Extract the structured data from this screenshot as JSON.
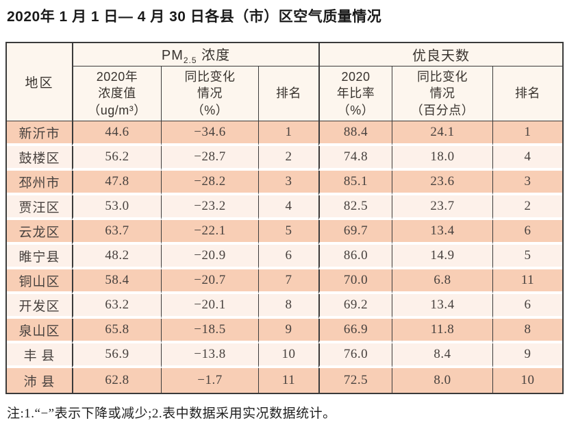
{
  "title": "2020年 1 月 1 日— 4 月 30 日各县（市）区空气质量情况",
  "table": {
    "region_header": "地区",
    "group_pm25": {
      "prefix": "PM",
      "sub": "2.5",
      "suffix": " 浓度"
    },
    "group_good_days": "优良天数",
    "subheaders": {
      "pm_value": "2020年\n浓度值\n（ug/m³）",
      "pm_change": "同比变化\n情况\n（%）",
      "pm_rank": "排名",
      "good_ratio": "2020\n年比率\n（%）",
      "good_change": "同比变化\n情况\n（百分点）",
      "good_rank": "排名"
    },
    "rows": [
      [
        "新沂市",
        "44.6",
        "−34.6",
        "1",
        "88.4",
        "24.1",
        "1"
      ],
      [
        "鼓楼区",
        "56.2",
        "−28.7",
        "2",
        "74.8",
        "18.0",
        "4"
      ],
      [
        "邳州市",
        "47.8",
        "−28.2",
        "3",
        "85.1",
        "23.6",
        "3"
      ],
      [
        "贾汪区",
        "53.0",
        "−23.2",
        "4",
        "82.5",
        "23.7",
        "2"
      ],
      [
        "云龙区",
        "63.7",
        "−22.1",
        "5",
        "69.7",
        "13.4",
        "6"
      ],
      [
        "睢宁县",
        "48.2",
        "−20.9",
        "6",
        "86.0",
        "14.9",
        "5"
      ],
      [
        "铜山区",
        "58.4",
        "−20.7",
        "7",
        "70.0",
        "6.8",
        "11"
      ],
      [
        "开发区",
        "63.2",
        "−20.1",
        "8",
        "69.2",
        "13.4",
        "6"
      ],
      [
        "泉山区",
        "65.8",
        "−18.5",
        "9",
        "66.9",
        "11.8",
        "8"
      ],
      [
        "丰 县",
        "56.9",
        "−13.8",
        "10",
        "76.0",
        "8.4",
        "9"
      ],
      [
        "沛 县",
        "62.8",
        "−1.7",
        "11",
        "72.5",
        "8.0",
        "10"
      ]
    ]
  },
  "footnote": "注:1.“−”表示下降或减少;2.表中数据采用实况数据统计。",
  "colors": {
    "row_accent": "#f8ceb5",
    "row_light": "#fdf1ea",
    "header_bg": "#fdf6ee",
    "border": "#3a3a3a"
  }
}
